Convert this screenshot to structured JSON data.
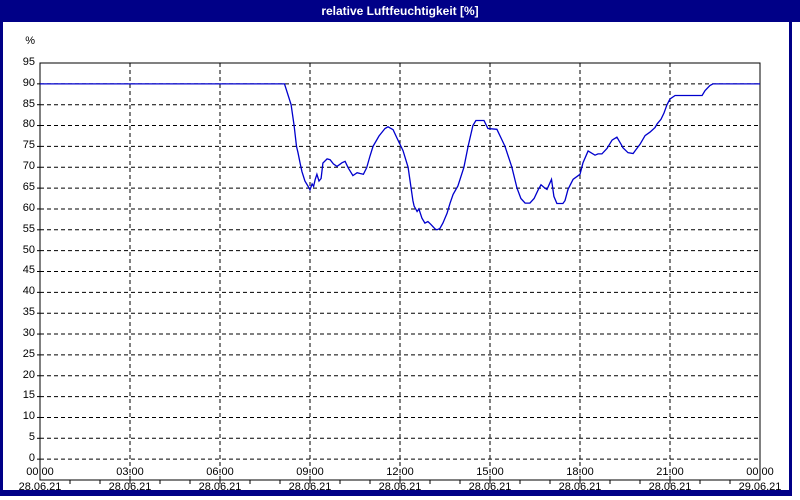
{
  "window": {
    "title": "relative Luftfeuchtigkeit [%]"
  },
  "colors": {
    "titlebar_bg": "#000087",
    "title_text": "#ffffff",
    "frame": "#000087",
    "plot_background": "#ffffff",
    "axis": "#000000",
    "grid": "#000000",
    "line": "#0000cd",
    "label_text": "#000000"
  },
  "chart_data": {
    "type": "line",
    "title": "relative Luftfeuchtigkeit [%]",
    "grid": "dashed",
    "legend": "none",
    "y_axis": {
      "unit": "%",
      "min": 0,
      "max": 100,
      "tick_step": 5,
      "tick_labels": [
        "95",
        "90",
        "85",
        "80",
        "75",
        "70",
        "65",
        "60",
        "55",
        "50",
        "45",
        "40",
        "35",
        "30",
        "25",
        "20",
        "15",
        "10",
        "5",
        "0"
      ]
    },
    "x_axis": {
      "hours_span": 24,
      "major_tick_hours": 3,
      "minor_tick_hours": 1,
      "ticks": [
        {
          "time": "00:00",
          "date": "28.06.21"
        },
        {
          "time": "03:00",
          "date": "28.06.21"
        },
        {
          "time": "06:00",
          "date": "28.06.21"
        },
        {
          "time": "09:00",
          "date": "28.06.21"
        },
        {
          "time": "12:00",
          "date": "28.06.21"
        },
        {
          "time": "15:00",
          "date": "28.06.21"
        },
        {
          "time": "18:00",
          "date": "28.06.21"
        },
        {
          "time": "21:00",
          "date": "28.06.21"
        },
        {
          "time": "00:00",
          "date": "29.06.21"
        }
      ]
    },
    "series": [
      {
        "name": "relative Luftfeuchtigkeit",
        "color": "#0000cd",
        "points_hour_value": [
          [
            0,
            95
          ],
          [
            8.15,
            95
          ],
          [
            8.37,
            90
          ],
          [
            8.47,
            85
          ],
          [
            8.55,
            80
          ],
          [
            8.6,
            78.5
          ],
          [
            8.67,
            76
          ],
          [
            8.73,
            74
          ],
          [
            8.83,
            71.7
          ],
          [
            8.93,
            70.5
          ],
          [
            9,
            69.6
          ],
          [
            9.07,
            71
          ],
          [
            9.12,
            70.4
          ],
          [
            9.17,
            72
          ],
          [
            9.23,
            73.3
          ],
          [
            9.3,
            71.7
          ],
          [
            9.37,
            72.3
          ],
          [
            9.43,
            76
          ],
          [
            9.57,
            77
          ],
          [
            9.67,
            76.8
          ],
          [
            9.78,
            75.8
          ],
          [
            9.9,
            75.2
          ],
          [
            10.07,
            76.1
          ],
          [
            10.17,
            76.4
          ],
          [
            10.27,
            74.9
          ],
          [
            10.43,
            73
          ],
          [
            10.57,
            73.7
          ],
          [
            10.67,
            73.5
          ],
          [
            10.78,
            73.3
          ],
          [
            10.89,
            74.9
          ],
          [
            11,
            77.7
          ],
          [
            11.1,
            80
          ],
          [
            11.3,
            82.5
          ],
          [
            11.5,
            84.3
          ],
          [
            11.6,
            84.7
          ],
          [
            11.77,
            84
          ],
          [
            11.9,
            82
          ],
          [
            12.1,
            79
          ],
          [
            12.27,
            75
          ],
          [
            12.37,
            70
          ],
          [
            12.43,
            67
          ],
          [
            12.47,
            65.7
          ],
          [
            12.57,
            64.4
          ],
          [
            12.63,
            65
          ],
          [
            12.73,
            62.8
          ],
          [
            12.83,
            61.6
          ],
          [
            12.93,
            62
          ],
          [
            13.03,
            61.3
          ],
          [
            13.17,
            60.2
          ],
          [
            13.23,
            60
          ],
          [
            13.33,
            60.3
          ],
          [
            13.43,
            61.6
          ],
          [
            13.57,
            64
          ],
          [
            13.67,
            66.4
          ],
          [
            13.77,
            68.5
          ],
          [
            13.93,
            70.5
          ],
          [
            14.13,
            75
          ],
          [
            14.27,
            80
          ],
          [
            14.43,
            85
          ],
          [
            14.53,
            86.2
          ],
          [
            14.8,
            86.2
          ],
          [
            14.93,
            84.3
          ],
          [
            15.23,
            84.1
          ],
          [
            15.37,
            82
          ],
          [
            15.5,
            80
          ],
          [
            15.73,
            75
          ],
          [
            15.9,
            70
          ],
          [
            16.03,
            67.5
          ],
          [
            16.17,
            66.4
          ],
          [
            16.33,
            66.4
          ],
          [
            16.47,
            67.5
          ],
          [
            16.6,
            69.5
          ],
          [
            16.7,
            70.8
          ],
          [
            16.83,
            70
          ],
          [
            16.9,
            69.7
          ],
          [
            17.05,
            72.1
          ],
          [
            17.13,
            68
          ],
          [
            17.23,
            66.3
          ],
          [
            17.43,
            66.3
          ],
          [
            17.5,
            67
          ],
          [
            17.6,
            69.7
          ],
          [
            17.77,
            72.1
          ],
          [
            18,
            73.3
          ],
          [
            18.1,
            76.1
          ],
          [
            18.27,
            78.9
          ],
          [
            18.5,
            77.9
          ],
          [
            18.6,
            78.2
          ],
          [
            18.73,
            78.2
          ],
          [
            18.9,
            79.5
          ],
          [
            19.07,
            81.5
          ],
          [
            19.23,
            82.2
          ],
          [
            19.37,
            80.5
          ],
          [
            19.43,
            79.7
          ],
          [
            19.6,
            78.5
          ],
          [
            19.77,
            78.3
          ],
          [
            20,
            80.5
          ],
          [
            20.17,
            82.6
          ],
          [
            20.33,
            83.4
          ],
          [
            20.5,
            84.5
          ],
          [
            20.57,
            85.4
          ],
          [
            20.7,
            86.5
          ],
          [
            20.8,
            88
          ],
          [
            20.9,
            90
          ],
          [
            21,
            91.4
          ],
          [
            21.17,
            92.2
          ],
          [
            22.07,
            92.2
          ],
          [
            22.17,
            93.4
          ],
          [
            22.33,
            94.6
          ],
          [
            22.43,
            95
          ],
          [
            24,
            95
          ]
        ]
      }
    ]
  }
}
